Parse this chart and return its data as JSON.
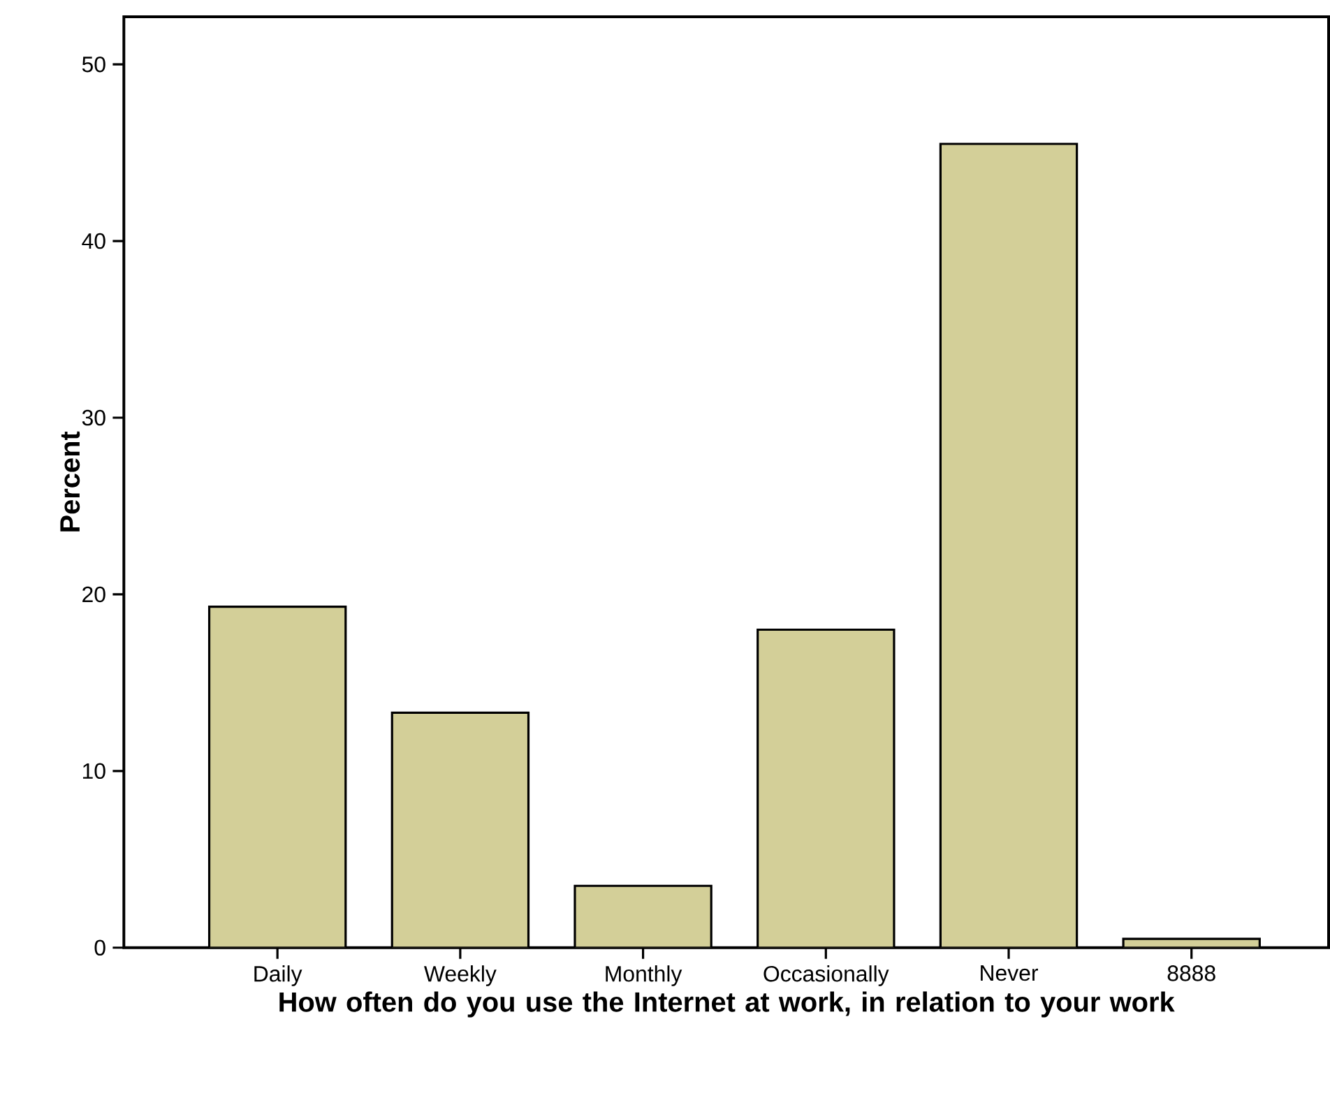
{
  "chart_data": {
    "type": "bar",
    "xlabel": "How often do you use the Internet at work, in relation to your work",
    "ylabel": "Percent",
    "categories": [
      "Daily",
      "Weekly",
      "Monthly",
      "Occasionally",
      "Never",
      "8888"
    ],
    "values": [
      19.3,
      13.3,
      3.5,
      18.0,
      45.5,
      0.5
    ],
    "color": "#d3cf98",
    "ylim": [
      0,
      52.7
    ],
    "yticks": [
      0,
      10,
      20,
      30,
      40,
      50
    ],
    "grid": false
  }
}
